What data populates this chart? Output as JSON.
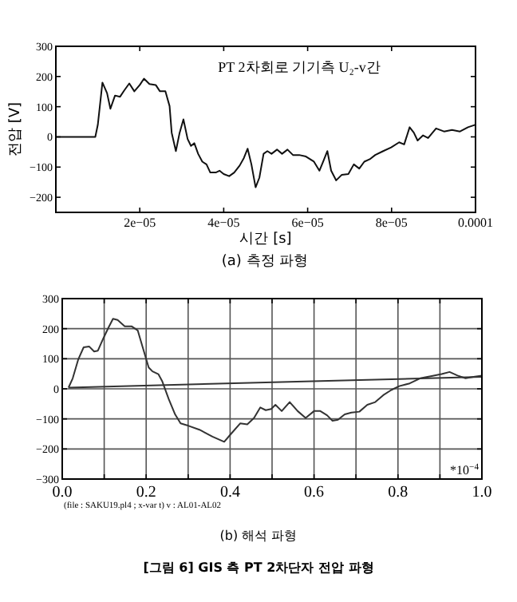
{
  "chart_data": [
    {
      "type": "line",
      "title": "PT 2차회로 기기측 U₂-v간",
      "xlabel": "시간 [s]",
      "ylabel": "전압 [V]",
      "annotations": [
        "(a) 측정 파형"
      ],
      "xlim": [
        0,
        0.0001
      ],
      "xticks": [
        {
          "value": 2e-05,
          "label": "2e−05"
        },
        {
          "value": 4e-05,
          "label": "4e−05"
        },
        {
          "value": 6e-05,
          "label": "6e−05"
        },
        {
          "value": 8e-05,
          "label": "8e−05"
        },
        {
          "value": 0.0001,
          "label": "0.0001"
        }
      ],
      "ylim": [
        -250,
        300
      ],
      "yticks": [
        {
          "value": -200,
          "label": "−200"
        },
        {
          "value": -100,
          "label": "−100"
        },
        0,
        100,
        200,
        300
      ],
      "grid": false,
      "series": [
        {
          "color": "#111111",
          "x": [
            0,
            9.4e-06,
            1e-05,
            1.11e-05,
            1.22e-05,
            1.3e-05,
            1.41e-05,
            1.53e-05,
            1.63e-05,
            1.75e-05,
            1.87e-05,
            2e-05,
            2.1e-05,
            2.23e-05,
            2.38e-05,
            2.48e-05,
            2.61e-05,
            2.71e-05,
            2.76e-05,
            2.86e-05,
            2.95e-05,
            3.04e-05,
            3.14e-05,
            3.22e-05,
            3.3e-05,
            3.39e-05,
            3.49e-05,
            3.59e-05,
            3.68e-05,
            3.81e-05,
            3.9e-05,
            4e-05,
            4.13e-05,
            4.25e-05,
            4.38e-05,
            4.48e-05,
            4.57e-05,
            4.66e-05,
            4.76e-05,
            4.85e-05,
            4.95e-05,
            5.04e-05,
            5.14e-05,
            5.27e-05,
            5.39e-05,
            5.52e-05,
            5.65e-05,
            5.8e-05,
            5.96e-05,
            6.15e-05,
            6.28e-05,
            6.37e-05,
            6.47e-05,
            6.56e-05,
            6.68e-05,
            6.81e-05,
            6.97e-05,
            7.1e-05,
            7.23e-05,
            7.35e-05,
            7.48e-05,
            7.61e-05,
            7.8e-05,
            7.99e-05,
            8.18e-05,
            8.3e-05,
            8.43e-05,
            8.53e-05,
            8.62e-05,
            8.75e-05,
            8.87e-05,
            9.06e-05,
            9.25e-05,
            9.44e-05,
            9.63e-05,
            9.82e-05,
            9.99e-05
          ],
          "values": [
            0,
            0,
            40,
            180,
            145,
            93,
            137,
            133,
            154,
            177,
            151,
            172,
            193,
            175,
            172,
            151,
            151,
            102,
            14,
            -47,
            14,
            58,
            -7,
            -30,
            -21,
            -56,
            -82,
            -91,
            -118,
            -118,
            -112,
            -123,
            -130,
            -118,
            -95,
            -70,
            -39,
            -91,
            -167,
            -135,
            -56,
            -47,
            -56,
            -42,
            -56,
            -42,
            -60,
            -60,
            -65,
            -82,
            -112,
            -82,
            -47,
            -112,
            -144,
            -126,
            -123,
            -91,
            -105,
            -82,
            -74,
            -60,
            -47,
            -35,
            -18,
            -25,
            32,
            14,
            -12,
            5,
            -4,
            28,
            18,
            23,
            18,
            32,
            40
          ]
        }
      ]
    },
    {
      "type": "line",
      "annotations": [
        "*10$^{−4}$",
        "(file : SAKU19.pl4 ; x-var t) v : AL01-AL02",
        "(b) 해석 파형",
        "[그림 6] GIS 측 PT 2차단자 전압 파형"
      ],
      "xlim": [
        0,
        1
      ],
      "xticks": [
        {
          "value": 0,
          "label": "0.0"
        },
        {
          "value": 0.1,
          "label": null
        },
        0.2,
        {
          "value": 0.3,
          "label": null
        },
        0.4,
        {
          "value": 0.5,
          "label": null
        },
        0.6,
        {
          "value": 0.7,
          "label": null
        },
        0.8,
        {
          "value": 0.9,
          "label": null
        },
        {
          "value": 1,
          "label": "1.0"
        }
      ],
      "ylim": [
        -300,
        300
      ],
      "yticks": [
        {
          "value": -300,
          "label": "−300"
        },
        {
          "value": -200,
          "label": "−200"
        },
        {
          "value": -100,
          "label": "−100"
        },
        0,
        100,
        200,
        300
      ],
      "grid": true,
      "series": [
        {
          "color": "#333333",
          "x": [
            0.015,
            0.025,
            0.038,
            0.051,
            0.064,
            0.076,
            0.085,
            0.098,
            0.11,
            0.121,
            0.132,
            0.149,
            0.165,
            0.18,
            0.193,
            0.206,
            0.215,
            0.229,
            0.238,
            0.254,
            0.269,
            0.282,
            0.301,
            0.327,
            0.358,
            0.386,
            0.402,
            0.424,
            0.441,
            0.457,
            0.472,
            0.485,
            0.498,
            0.508,
            0.523,
            0.542,
            0.561,
            0.58,
            0.6,
            0.615,
            0.631,
            0.644,
            0.657,
            0.673,
            0.689,
            0.708,
            0.727,
            0.746,
            0.765,
            0.784,
            0.803,
            0.828,
            0.853,
            0.878,
            0.904,
            0.923,
            0.942,
            0.961,
            0.98,
            1.0
          ],
          "values": [
            4,
            35,
            97,
            138,
            141,
            124,
            127,
            168,
            203,
            233,
            229,
            208,
            208,
            194,
            132,
            71,
            58,
            49,
            26,
            -35,
            -85,
            -115,
            -123,
            -136,
            -159,
            -176,
            -150,
            -115,
            -118,
            -97,
            -62,
            -71,
            -67,
            -53,
            -74,
            -44,
            -74,
            -97,
            -74,
            -74,
            -88,
            -106,
            -103,
            -85,
            -79,
            -76,
            -53,
            -44,
            -21,
            -4,
            9,
            18,
            35,
            42,
            49,
            56,
            44,
            35,
            40,
            44
          ]
        },
        {
          "color": "#333333",
          "x": [
            0.015,
            1.0
          ],
          "values": [
            4,
            40
          ]
        }
      ]
    }
  ]
}
